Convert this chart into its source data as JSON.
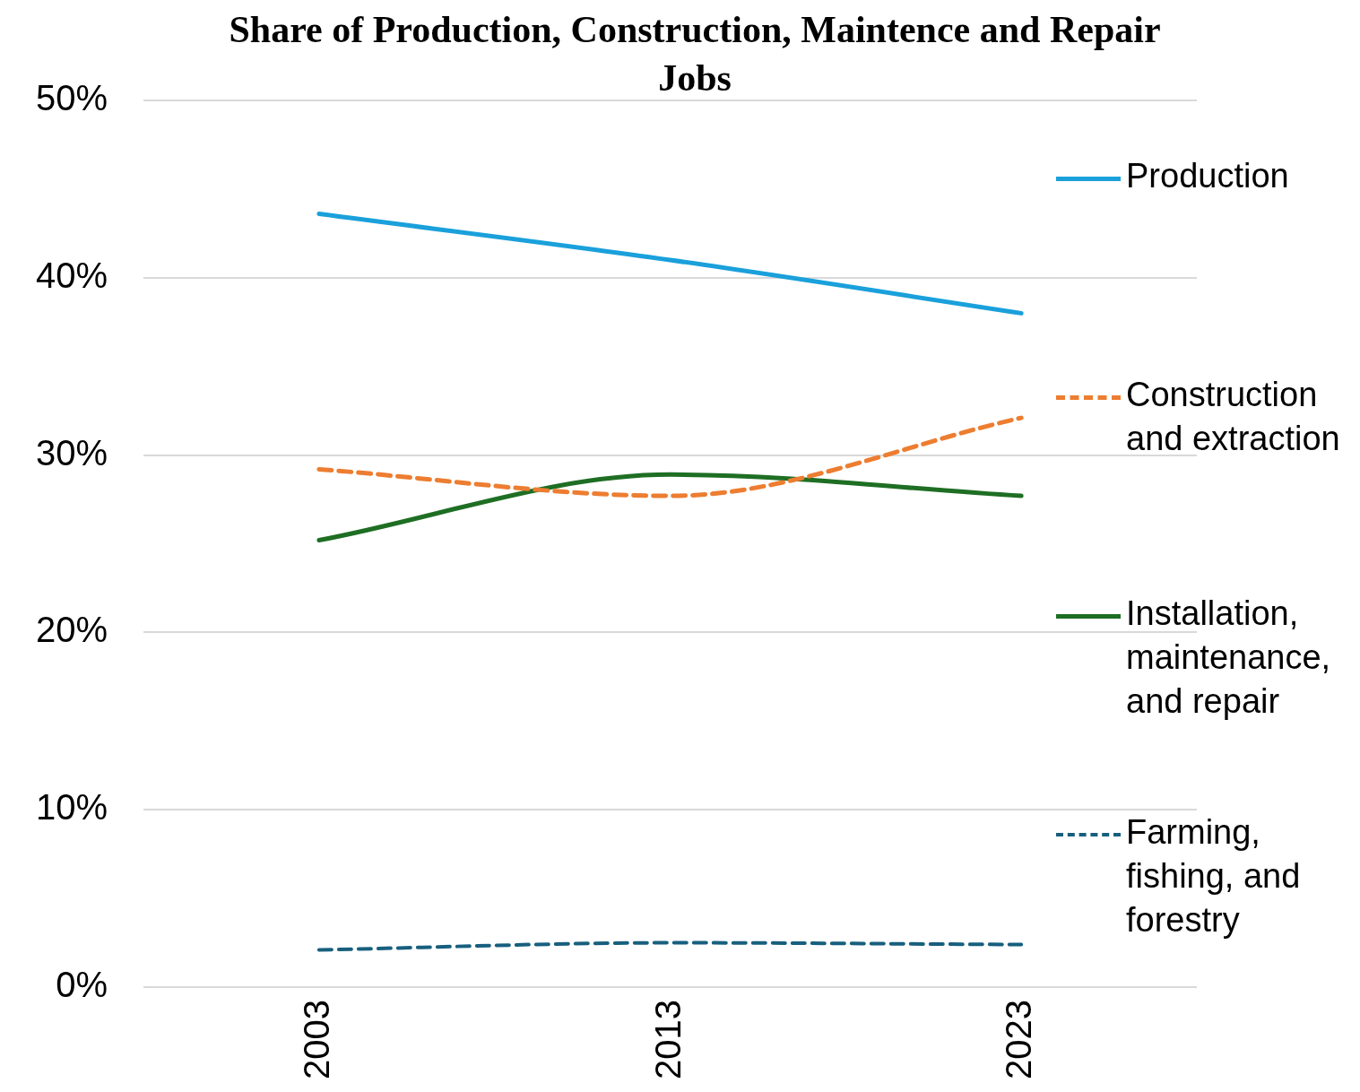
{
  "chart_data": {
    "type": "line",
    "title": "Share of Production, Construction, Maintence and Repair Jobs",
    "categories": [
      "2003",
      "2013",
      "2023"
    ],
    "series": [
      {
        "name": "Production",
        "color": "#1aa0db",
        "values": [
          43.6,
          41.0,
          38.0
        ],
        "line_style": "solid"
      },
      {
        "name": "Construction and extraction",
        "color": "#ed7d31",
        "values": [
          29.2,
          27.7,
          32.1
        ],
        "line_style": "dashed"
      },
      {
        "name": "Installation, maintenance, and repair",
        "color": "#1e6e23",
        "values": [
          25.2,
          28.9,
          27.7
        ],
        "line_style": "solid"
      },
      {
        "name": "Farming, fishing, and forestry",
        "color": "#175f7e",
        "values": [
          2.1,
          2.5,
          2.4
        ],
        "line_style": "dashed"
      }
    ],
    "ylim": [
      0,
      50
    ],
    "yticks": [
      {
        "value": 0,
        "label": "0%"
      },
      {
        "value": 10,
        "label": "10%"
      },
      {
        "value": 20,
        "label": "20%"
      },
      {
        "value": 30,
        "label": "30%"
      },
      {
        "value": 40,
        "label": "40%"
      },
      {
        "value": 50,
        "label": "50%"
      }
    ],
    "grid": "y",
    "legend": "right",
    "marker": "none"
  }
}
